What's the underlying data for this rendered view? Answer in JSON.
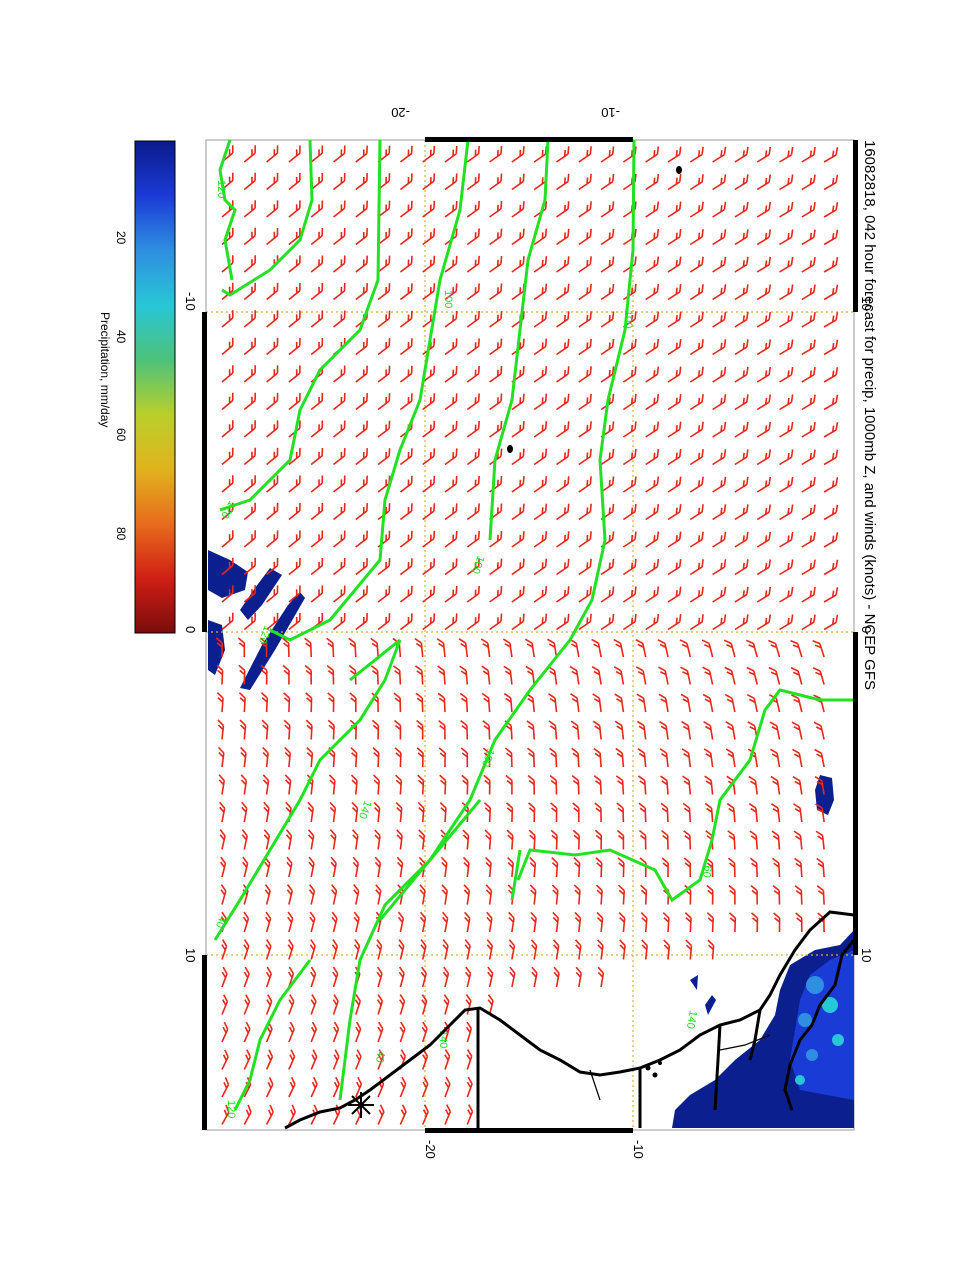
{
  "title": "16082818, 042 hour forecast for precip, 1000mb Z, and winds (knots) - NCEP GFS",
  "colorbar": {
    "label": "Precipitation, mm/day",
    "ticks": [
      "20",
      "40",
      "60",
      "80"
    ],
    "tick_values": [
      20,
      40,
      60,
      80
    ],
    "range": [
      0,
      100
    ],
    "colors": [
      "#0a1a8c",
      "#1b3bd6",
      "#2e8fe0",
      "#28c6d6",
      "#4cc27a",
      "#b9cf2b",
      "#e0b31e",
      "#e86c1c",
      "#d01f14",
      "#7a0c0c"
    ]
  },
  "axes": {
    "top_ticks": [
      "-20",
      "-10"
    ],
    "bottom_ticks": [
      "-20",
      "-10"
    ],
    "left_ticks": [
      "-10",
      "0",
      "10"
    ],
    "right_ticks": [
      "-10",
      "0",
      "10"
    ]
  },
  "contour_labels": [
    "120",
    "120",
    "120",
    "100",
    "100",
    "100",
    "100",
    "60",
    "40",
    "40",
    "140",
    "140",
    "140",
    "120"
  ],
  "colors": {
    "contour": "#22e022",
    "barb": "#e8261a",
    "grid": "#d8b23a",
    "coast": "#000000",
    "precip_dark": "#0c1f8e"
  },
  "icons": {
    "station_marker": "asterisk-icon"
  }
}
